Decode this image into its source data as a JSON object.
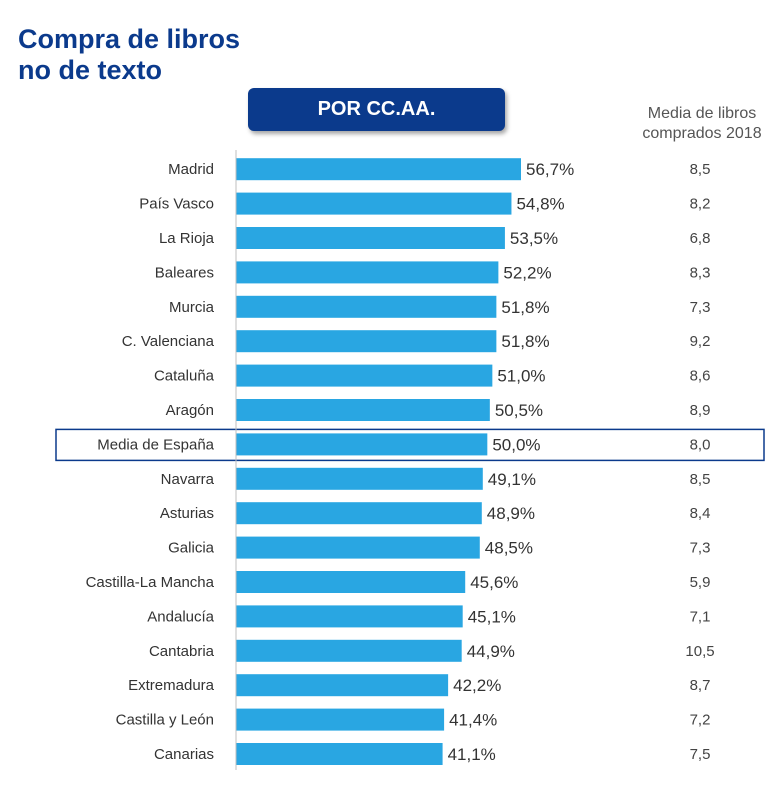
{
  "title": {
    "line1": "Compra de libros",
    "line2": "no de texto"
  },
  "badge": "POR CC.AA.",
  "column_header": {
    "line1": "Media de libros",
    "line2": "comprados 2018"
  },
  "colors": {
    "bar": "#29a6e2",
    "title": "#0b3a8c",
    "highlight_border": "#0b3a8c"
  },
  "chart_data": {
    "type": "bar",
    "orientation": "horizontal",
    "categories": [
      "Madrid",
      "País Vasco",
      "La Rioja",
      "Baleares",
      "Murcia",
      "C. Valenciana",
      "Cataluña",
      "Aragón",
      "Media de España",
      "Navarra",
      "Asturias",
      "Galicia",
      "Castilla-La Mancha",
      "Andalucía",
      "Cantabria",
      "Extremadura",
      "Castilla y León",
      "Canarias"
    ],
    "values": [
      56.7,
      54.8,
      53.5,
      52.2,
      51.8,
      51.8,
      51.0,
      50.5,
      50.0,
      49.1,
      48.9,
      48.5,
      45.6,
      45.1,
      44.9,
      42.2,
      41.4,
      41.1
    ],
    "value_labels": [
      "56,7%",
      "54,8%",
      "53,5%",
      "52,2%",
      "51,8%",
      "51,8%",
      "51,0%",
      "50,5%",
      "50,0%",
      "49,1%",
      "48,9%",
      "48,5%",
      "45,6%",
      "45,1%",
      "44,9%",
      "42,2%",
      "41,4%",
      "41,1%"
    ],
    "media_libros_2018": [
      "8,5",
      "8,2",
      "6,8",
      "8,3",
      "7,3",
      "9,2",
      "8,6",
      "8,9",
      "8,0",
      "8,5",
      "8,4",
      "7,3",
      "5,9",
      "7,1",
      "10,5",
      "8,7",
      "7,2",
      "7,5"
    ],
    "highlighted_category": "Media de España",
    "xlim": [
      0,
      56.7
    ]
  }
}
